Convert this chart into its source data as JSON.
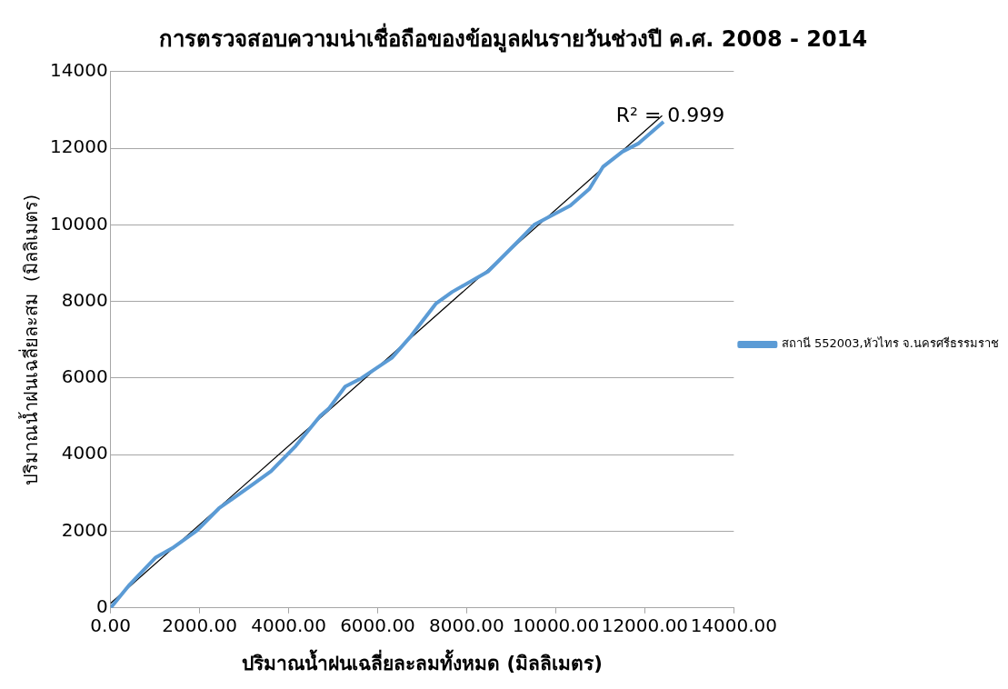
{
  "chart_data": {
    "type": "line",
    "title": "การตรวจสอบความน่าเชื่อถือของข้อมูลฝนรายวันช่วงปี ค.ศ. 2008 - 2014",
    "xlabel": "ปริมาณน้ำฝนเฉลี่ยละลมทั้งหมด (มิลลิเมตร)",
    "ylabel": "ปริมาณน้ำฝนเฉลี่ยละสม  (มิลลิเมตร)",
    "annotations": [
      "R² = 0.999"
    ],
    "series": [
      {
        "name": "สถานี 552003,หัวไทร จ.นครศรีธรรมราช",
        "color": "#5b9bd5",
        "x": [
          0,
          431,
          1017,
          1387,
          1942,
          2435,
          3175,
          3606,
          4161,
          4716,
          4901,
          5271,
          5641,
          6319,
          6751,
          7305,
          7675,
          8477,
          9155,
          9525,
          10326,
          10757,
          11065,
          11497,
          11866,
          12421
        ],
        "values": [
          0,
          610,
          1320,
          1560,
          2020,
          2600,
          3210,
          3570,
          4230,
          5020,
          5200,
          5780,
          6000,
          6530,
          7100,
          7940,
          8250,
          8780,
          9570,
          10010,
          10500,
          10940,
          11520,
          11910,
          12130,
          12690
        ]
      },
      {
        "type": "line",
        "color": "#000000",
        "x": [
          0,
          12390
        ],
        "values": [
          120,
          12850
        ]
      }
    ],
    "xlim": [
      0,
      14000
    ],
    "xticks": [
      {
        "value": 0,
        "label": "0.00"
      },
      {
        "value": 2000,
        "label": "2000.00"
      },
      {
        "value": 4000,
        "label": "4000.00"
      },
      {
        "value": 6000,
        "label": "6000.00"
      },
      {
        "value": 8000,
        "label": "8000.00"
      },
      {
        "value": 10000,
        "label": "10000.00"
      },
      {
        "value": 12000,
        "label": "12000.00"
      },
      {
        "value": 14000,
        "label": "14000.00"
      }
    ],
    "ylim": [
      0,
      14000
    ],
    "yticks": [
      0,
      2000,
      4000,
      6000,
      8000,
      10000,
      12000,
      14000
    ],
    "grid": "y",
    "legend": "right",
    "marker": "none",
    "line_style": "solid"
  }
}
